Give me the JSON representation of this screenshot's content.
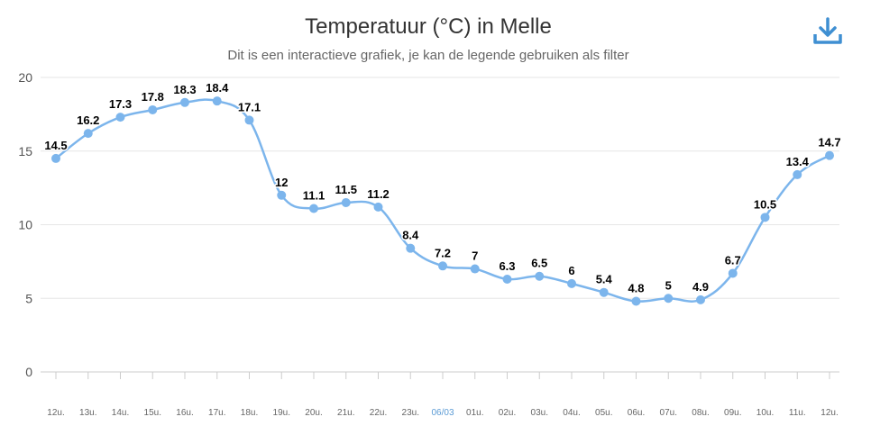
{
  "header": {
    "title": "Temperatuur (°C) in Melle",
    "subtitle": "Dit is een interactieve grafiek, je kan de legende gebruiken als filter"
  },
  "toolbar": {
    "download_icon": "download-icon"
  },
  "colors": {
    "series": "#7cb5ec",
    "grid": "#e6e6e6",
    "highlight_tick": "#5b9bd5"
  },
  "chart_data": {
    "type": "line",
    "title": "Temperatuur (°C) in Melle",
    "subtitle": "Dit is een interactieve grafiek, je kan de legende gebruiken als filter",
    "categories": [
      "12u.",
      "13u.",
      "14u.",
      "15u.",
      "16u.",
      "17u.",
      "18u.",
      "19u.",
      "20u.",
      "21u.",
      "22u.",
      "23u.",
      "06/03",
      "01u.",
      "02u.",
      "03u.",
      "04u.",
      "05u.",
      "06u.",
      "07u.",
      "08u.",
      "09u.",
      "10u.",
      "11u.",
      "12u."
    ],
    "highlighted_category": "06/03",
    "series": [
      {
        "values": [
          14.5,
          16.2,
          17.3,
          17.8,
          18.3,
          18.4,
          17.1,
          12,
          11.1,
          11.5,
          11.2,
          8.4,
          7.2,
          7,
          6.3,
          6.5,
          6,
          5.4,
          4.8,
          5,
          4.9,
          6.7,
          10.5,
          13.4,
          14.7
        ]
      }
    ],
    "yticks": [
      0,
      5,
      10,
      15,
      20
    ],
    "ylim": [
      0,
      20
    ],
    "grid": true,
    "legend": "none",
    "data_labels": true
  }
}
